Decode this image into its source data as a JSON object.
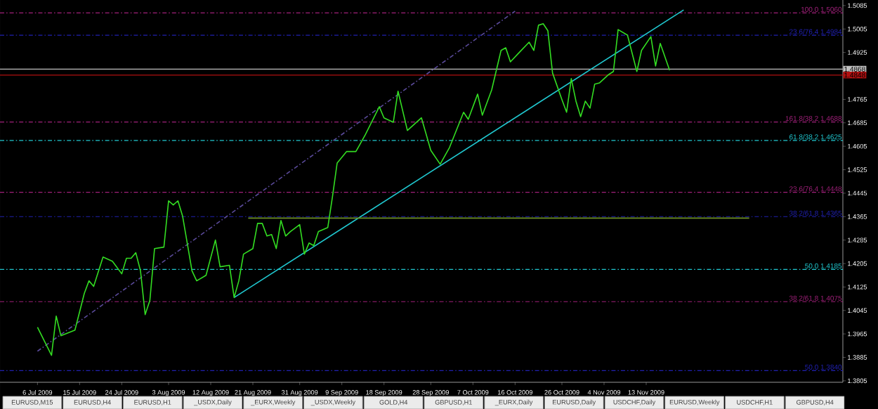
{
  "chart_data": {
    "type": "line",
    "x": [
      "2009-07-06",
      "2009-07-09",
      "2009-07-10",
      "2009-07-11",
      "2009-07-14",
      "2009-07-16",
      "2009-07-17",
      "2009-07-18",
      "2009-07-20",
      "2009-07-22",
      "2009-07-24",
      "2009-07-25",
      "2009-07-26",
      "2009-07-27",
      "2009-07-28",
      "2009-07-29",
      "2009-07-30",
      "2009-07-31",
      "2009-08-02",
      "2009-08-03",
      "2009-08-04",
      "2009-08-05",
      "2009-08-06",
      "2009-08-08",
      "2009-08-09",
      "2009-08-11",
      "2009-08-13",
      "2009-08-14",
      "2009-08-16",
      "2009-08-17",
      "2009-08-18",
      "2009-08-19",
      "2009-08-21",
      "2009-08-22",
      "2009-08-23",
      "2009-08-24",
      "2009-08-25",
      "2009-08-26",
      "2009-08-27",
      "2009-08-28",
      "2009-08-29",
      "2009-08-31",
      "2009-09-01",
      "2009-09-02",
      "2009-09-03",
      "2009-09-04",
      "2009-09-06",
      "2009-09-07",
      "2009-09-08",
      "2009-09-10",
      "2009-09-12",
      "2009-09-14",
      "2009-09-17",
      "2009-09-18",
      "2009-09-20",
      "2009-09-21",
      "2009-09-23",
      "2009-09-26",
      "2009-09-28",
      "2009-09-30",
      "2009-10-02",
      "2009-10-05",
      "2009-10-06",
      "2009-10-08",
      "2009-10-09",
      "2009-10-11",
      "2009-10-13",
      "2009-10-14",
      "2009-10-15",
      "2009-10-17",
      "2009-10-19",
      "2009-10-20",
      "2009-10-21",
      "2009-10-22",
      "2009-10-23",
      "2009-10-24",
      "2009-10-26",
      "2009-10-27",
      "2009-10-28",
      "2009-10-29",
      "2009-10-30",
      "2009-10-31",
      "2009-11-01",
      "2009-11-02",
      "2009-11-03",
      "2009-11-05",
      "2009-11-06",
      "2009-11-07",
      "2009-11-09",
      "2009-11-11",
      "2009-11-12",
      "2009-11-14",
      "2009-11-15",
      "2009-11-16",
      "2009-11-18"
    ],
    "series": [
      {
        "color": "#33dd22",
        "line_style": "solid",
        "values": [
          1.3988,
          1.3892,
          1.4026,
          1.3959,
          1.3978,
          1.4103,
          1.4146,
          1.4127,
          1.4227,
          1.4213,
          1.417,
          1.4223,
          1.4223,
          1.4242,
          1.418,
          1.4031,
          1.4079,
          1.4256,
          1.4261,
          1.4419,
          1.4405,
          1.4419,
          1.4366,
          1.418,
          1.4146,
          1.4165,
          1.4285,
          1.4194,
          1.4199,
          1.4089,
          1.4146,
          1.4237,
          1.4256,
          1.4342,
          1.4342,
          1.4299,
          1.4304,
          1.4256,
          1.4352,
          1.4299,
          1.4314,
          1.4338,
          1.4237,
          1.4275,
          1.4266,
          1.4314,
          1.4328,
          1.4433,
          1.4548,
          1.4587,
          1.4587,
          1.4644,
          1.474,
          1.4702,
          1.4687,
          1.4793,
          1.4659,
          1.4702,
          1.4591,
          1.4544,
          1.4601,
          1.4721,
          1.4697,
          1.4783,
          1.4711,
          1.4797,
          1.4932,
          1.4941,
          1.4893,
          1.4927,
          1.496,
          1.4932,
          1.5018,
          1.5023,
          1.4999,
          1.4855,
          1.4764,
          1.4721,
          1.4836,
          1.4759,
          1.4706,
          1.4759,
          1.4735,
          1.4817,
          1.4821,
          1.485,
          1.486,
          1.5003,
          1.4984,
          1.486,
          1.4932,
          1.4979,
          1.4879,
          1.4956,
          1.4864
        ]
      },
      {
        "color": "#20c8d0",
        "line_style": "solid",
        "x": [
          "2009-08-17",
          "2009-11-21"
        ],
        "values": [
          1.4089,
          1.507
        ]
      },
      {
        "color": "#5a4a9a",
        "line_style": "dashed",
        "x": [
          "2009-07-06",
          "2009-10-16"
        ],
        "values": [
          1.3906,
          1.5066
        ]
      },
      {
        "color": "#6b8e23",
        "line_style": "solid",
        "x": [
          "2009-08-20",
          "2009-12-05"
        ],
        "values": [
          1.436,
          1.436
        ]
      }
    ],
    "xlim": [
      "2009-06-28",
      "2009-12-25"
    ],
    "xticks": [
      {
        "value": "2009-07-06",
        "label": "6 Jul 2009"
      },
      {
        "value": "2009-07-15",
        "label": "15 Jul 2009"
      },
      {
        "value": "2009-07-24",
        "label": "24 Jul 2009"
      },
      {
        "value": "2009-08-03",
        "label": "3 Aug 2009"
      },
      {
        "value": "2009-08-12",
        "label": "12 Aug 2009"
      },
      {
        "value": "2009-08-21",
        "label": "21 Aug 2009"
      },
      {
        "value": "2009-08-31",
        "label": "31 Aug 2009"
      },
      {
        "value": "2009-09-09",
        "label": "9 Sep 2009"
      },
      {
        "value": "2009-09-18",
        "label": "18 Sep 2009"
      },
      {
        "value": "2009-09-28",
        "label": "28 Sep 2009"
      },
      {
        "value": "2009-10-07",
        "label": "7 Oct 2009"
      },
      {
        "value": "2009-10-16",
        "label": "16 Oct 2009"
      },
      {
        "value": "2009-10-26",
        "label": "26 Oct 2009"
      },
      {
        "value": "2009-11-04",
        "label": "4 Nov 2009"
      },
      {
        "value": "2009-11-13",
        "label": "13 Nov 2009"
      }
    ],
    "ylim": [
      1.38,
      1.5104
    ],
    "yticks": [
      1.5085,
      1.5005,
      1.4925,
      1.4765,
      1.4685,
      1.4605,
      1.4525,
      1.4445,
      1.4365,
      1.4285,
      1.4205,
      1.4125,
      1.4045,
      1.3965,
      1.3885,
      1.3805
    ],
    "marker": "none",
    "ref_lines": [
      {
        "axis": "y",
        "value": 1.506,
        "label": "100.0 1.5060",
        "color": "#a0207a",
        "line_style": "dashed"
      },
      {
        "axis": "y",
        "value": 1.4984,
        "label": "23.6/76.4 1.4984",
        "color": "#2020b0",
        "line_style": "dashed"
      },
      {
        "axis": "y",
        "value": 1.4688,
        "label": "161.8/38.2 1.4688",
        "color": "#a0207a",
        "line_style": "dashed"
      },
      {
        "axis": "y",
        "value": 1.4625,
        "label": "61.8/38.2 1.4625",
        "color": "#20c8d0",
        "line_style": "dashed"
      },
      {
        "axis": "y",
        "value": 1.4448,
        "label": "23.6/76.4 1.4448",
        "color": "#a0207a",
        "line_style": "dashed"
      },
      {
        "axis": "y",
        "value": 1.4365,
        "label": "38.2/61.8 1.4365",
        "color": "#2020b0",
        "line_style": "dashed"
      },
      {
        "axis": "y",
        "value": 1.4185,
        "label": "50.0 1.4185",
        "color": "#20c8d0",
        "line_style": "dashed"
      },
      {
        "axis": "y",
        "value": 1.4075,
        "label": "38.2/61.8 1.4075",
        "color": "#a0207a",
        "line_style": "dashed"
      },
      {
        "axis": "y",
        "value": 1.384,
        "label": "50.0 1.3840",
        "color": "#2020b0",
        "line_style": "dashed"
      },
      {
        "axis": "y",
        "value": 1.4868,
        "label": "1.4868",
        "color": "#c0c0c0",
        "line_style": "solid"
      },
      {
        "axis": "y",
        "value": 1.4848,
        "label": "1.4848",
        "color": "#b01010",
        "line_style": "solid"
      }
    ],
    "annotations": [
      "EURUSD,M15",
      "EURUSD,H4",
      "EURUSD,H1",
      "_USDX,Daily",
      "_EURX,Weekly",
      "_USDX,Weekly",
      "GOLD,H4",
      "GBPUSD,H1",
      "_EURX,Daily",
      "EURUSD,Daily",
      "USDCHF,Daily",
      "EURUSD,Weekly",
      "USDCHF,H1",
      "GBPUSD,H4"
    ]
  }
}
